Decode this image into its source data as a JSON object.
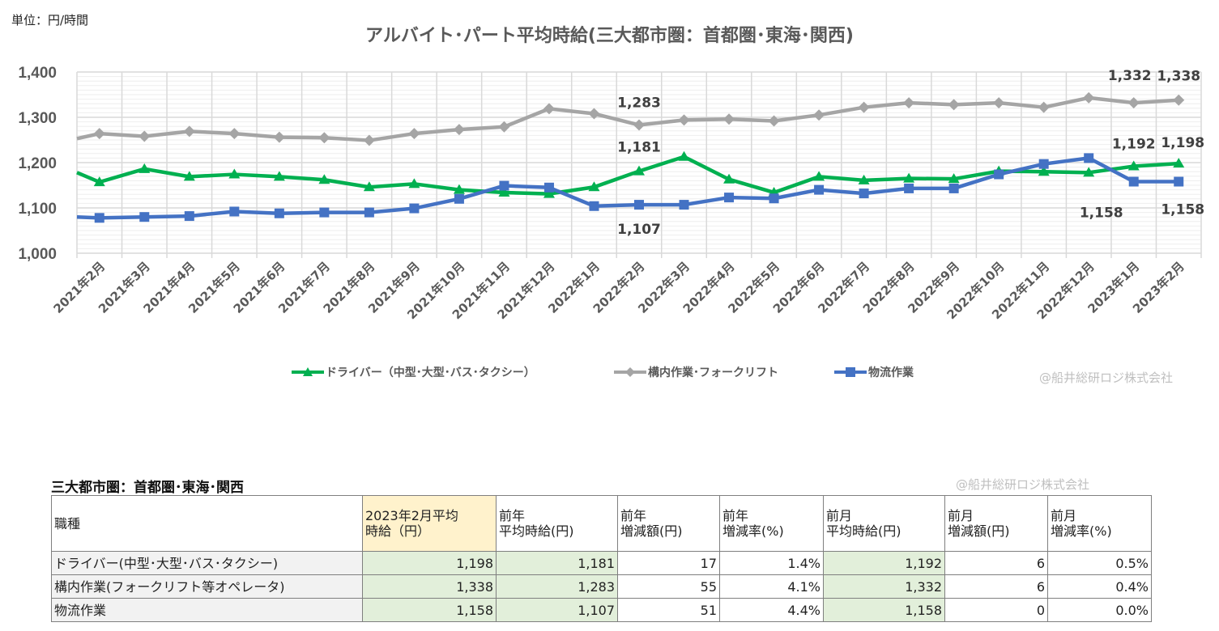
{
  "unit_label": "単位：円/時間",
  "credit": "@船井総研ロジ株式会社",
  "chart_data": {
    "type": "line",
    "title": "アルバイト･パート平均時給(三大都市圏：首都圏･東海･関西)",
    "categories": [
      "2021年2月",
      "2021年3月",
      "2021年4月",
      "2021年5月",
      "2021年6月",
      "2021年7月",
      "2021年8月",
      "2021年9月",
      "2021年10月",
      "2021年11月",
      "2021年12月",
      "2022年1月",
      "2022年2月",
      "2022年3月",
      "2022年4月",
      "2022年5月",
      "2022年6月",
      "2022年7月",
      "2022年8月",
      "2022年9月",
      "2022年10月",
      "2022年11月",
      "2022年12月",
      "2023年1月",
      "2023年2月"
    ],
    "ylim": [
      1000,
      1400
    ],
    "yticks": [
      "1,000",
      "1,100",
      "1,200",
      "1,300",
      "1,400"
    ],
    "grid": true,
    "legend_position": "bottom",
    "series": [
      {
        "name": "ドライバー（中型･大型･バス･タクシー）",
        "color": "#00b050",
        "marker": "triangle",
        "prior_value": 1178,
        "values": [
          1157,
          1186,
          1169,
          1174,
          1169,
          1162,
          1146,
          1153,
          1140,
          1134,
          1131,
          1146,
          1181,
          1213,
          1163,
          1134,
          1169,
          1161,
          1165,
          1164,
          1181,
          1180,
          1178,
          1192,
          1198
        ],
        "labels": [
          {
            "index": 12,
            "text": "1,181"
          },
          {
            "index": 23,
            "text": "1,192"
          },
          {
            "index": 24,
            "text": "1,198"
          }
        ]
      },
      {
        "name": "構内作業･フォークリフト",
        "color": "#a5a5a5",
        "marker": "diamond",
        "prior_value": 1253,
        "values": [
          1264,
          1258,
          1269,
          1264,
          1256,
          1255,
          1249,
          1264,
          1273,
          1279,
          1319,
          1308,
          1283,
          1294,
          1296,
          1292,
          1305,
          1322,
          1332,
          1328,
          1332,
          1322,
          1343,
          1332,
          1338
        ],
        "labels": [
          {
            "index": 12,
            "text": "1,283"
          },
          {
            "index": 23,
            "text": "1,332"
          },
          {
            "index": 24,
            "text": "1,338"
          }
        ]
      },
      {
        "name": "物流作業",
        "color": "#4472c4",
        "marker": "square",
        "prior_value": 1080,
        "values": [
          1078,
          1080,
          1082,
          1092,
          1088,
          1090,
          1090,
          1099,
          1120,
          1149,
          1145,
          1104,
          1107,
          1107,
          1123,
          1121,
          1140,
          1132,
          1143,
          1143,
          1174,
          1197,
          1210,
          1158,
          1158
        ],
        "labels": [
          {
            "index": 12,
            "text": "1,107"
          },
          {
            "index": 23,
            "text": "1,158"
          },
          {
            "index": 24,
            "text": "1,158"
          }
        ]
      }
    ]
  },
  "table": {
    "title": "三大都市圏：首都圏･東海･関西",
    "headers": [
      "職種",
      "2023年2月平均\n時給（円）",
      "前年\n平均時給(円)",
      "前年\n増減額(円)",
      "前年\n増減率(%)",
      "前月\n平均時給(円)",
      "前月\n増減額(円)",
      "前月\n増減率(%)"
    ],
    "rows": [
      [
        "ドライバー(中型･大型･バス･タクシー)",
        "1,198",
        "1,181",
        "17",
        "1.4%",
        "1,192",
        "6",
        "0.5%"
      ],
      [
        "構内作業(フォークリフト等オペレータ)",
        "1,338",
        "1,283",
        "55",
        "4.1%",
        "1,332",
        "6",
        "0.4%"
      ],
      [
        "物流作業",
        "1,158",
        "1,107",
        "51",
        "4.4%",
        "1,158",
        "0",
        "0.0%"
      ]
    ]
  }
}
